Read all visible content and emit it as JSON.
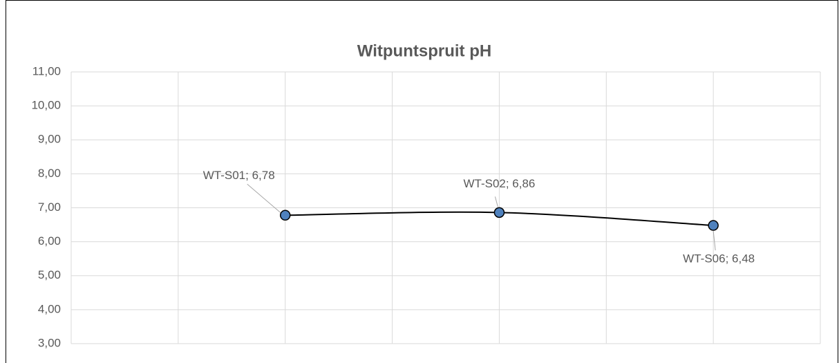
{
  "chart_data": {
    "type": "line",
    "title": "Witpuntspruit pH",
    "x": [
      1,
      2,
      3
    ],
    "values": [
      6.78,
      6.86,
      6.48
    ],
    "value_labels": [
      "WT-S01; 6,78",
      "WT-S02; 6,86",
      "WT-S06; 6,48"
    ],
    "color": "#000000",
    "marker_color": "#4f81bd",
    "xlim": [
      0,
      3.5
    ],
    "xticks": [
      0,
      0.5,
      1,
      1.5,
      2,
      2.5,
      3,
      3.5
    ],
    "ylim": [
      3,
      11
    ],
    "yticks": [
      {
        "value": 3,
        "label": "3,00"
      },
      {
        "value": 4,
        "label": "4,00"
      },
      {
        "value": 5,
        "label": "5,00"
      },
      {
        "value": 6,
        "label": "6,00"
      },
      {
        "value": 7,
        "label": "7,00"
      },
      {
        "value": 8,
        "label": "8,00"
      },
      {
        "value": 9,
        "label": "9,00"
      },
      {
        "value": 10,
        "label": "10,00"
      },
      {
        "value": 11,
        "label": "11,00"
      }
    ],
    "grid": true,
    "smooth": true
  }
}
